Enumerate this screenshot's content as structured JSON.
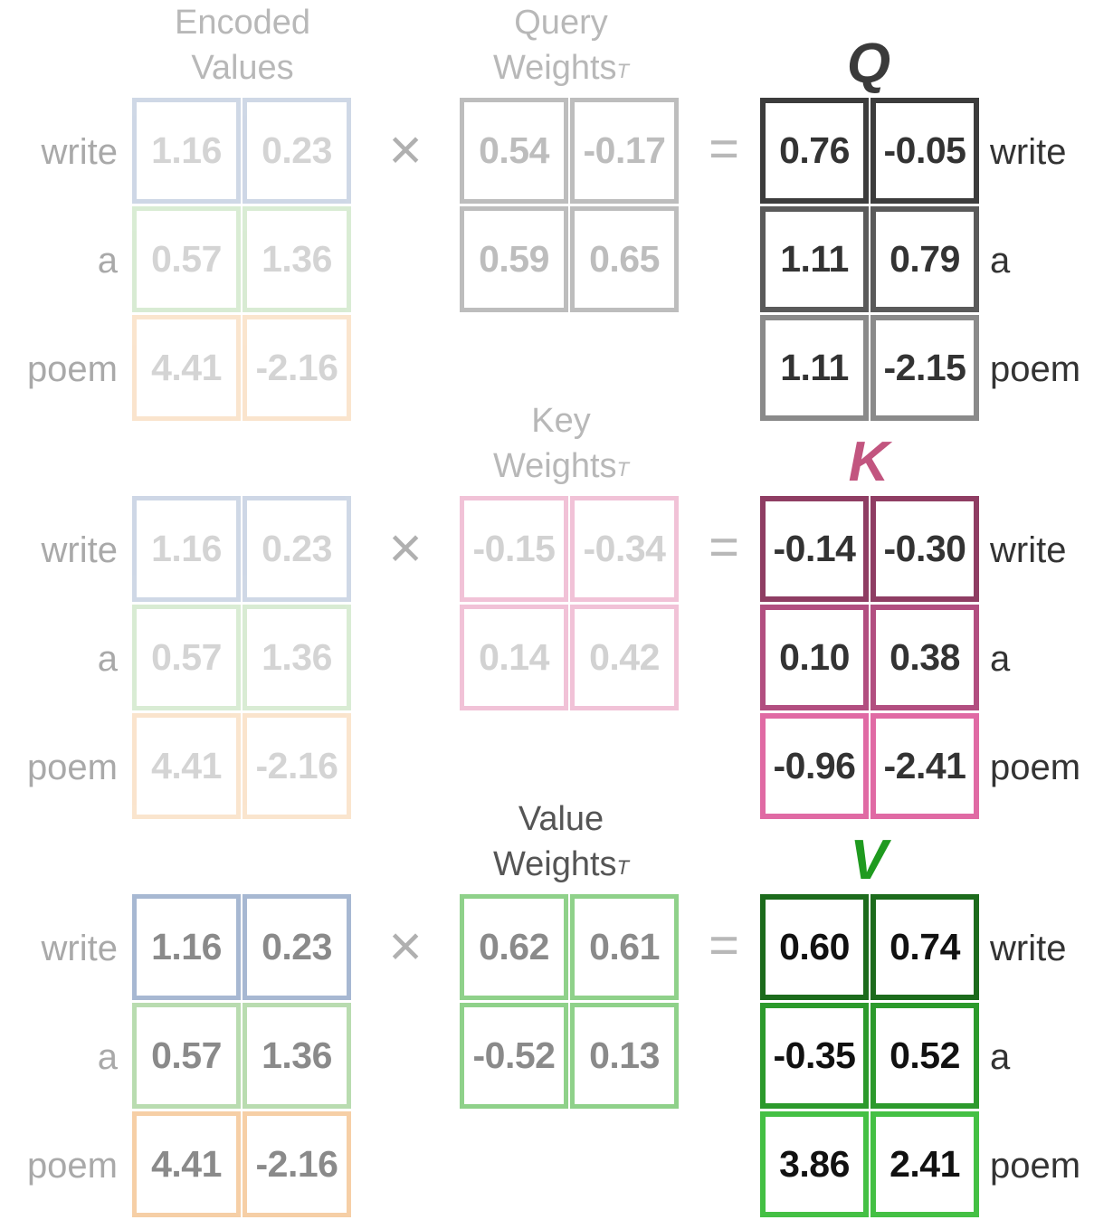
{
  "headers": {
    "encoded": [
      "Encoded",
      "Values"
    ],
    "query": [
      "Query",
      "Weights",
      "T"
    ],
    "key": [
      "Key",
      "Weights",
      "T"
    ],
    "value": [
      "Value",
      "Weights",
      "T"
    ]
  },
  "outputs": {
    "q": "Q",
    "k": "K",
    "v": "V"
  },
  "tokens": [
    "write",
    "a",
    "poem"
  ],
  "operators": {
    "times": "×",
    "equals": "="
  },
  "colors": {
    "row_write": "#a7b8d2",
    "row_a": "#b9dcb0",
    "row_poem": "#f6cfa6",
    "query_w": "#bdbdbd",
    "key_w": "#f1c2d7",
    "value_w": "#8fd18a",
    "q_out": "#4a4a4a",
    "k_out": "#a94a76",
    "v_out": "#1f8a1f",
    "k_title": "#c2557f",
    "v_title": "#1f9a1f"
  },
  "blocks": [
    {
      "encoded": [
        [
          "1.16",
          "0.23"
        ],
        [
          "0.57",
          "1.36"
        ],
        [
          "4.41",
          "-2.16"
        ]
      ],
      "weights": [
        [
          "0.54",
          "-0.17"
        ],
        [
          "0.59",
          "0.65"
        ]
      ],
      "result": [
        [
          "0.76",
          "-0.05"
        ],
        [
          "1.11",
          "0.79"
        ],
        [
          "1.11",
          "-2.15"
        ]
      ]
    },
    {
      "encoded": [
        [
          "1.16",
          "0.23"
        ],
        [
          "0.57",
          "1.36"
        ],
        [
          "4.41",
          "-2.16"
        ]
      ],
      "weights": [
        [
          "-0.15",
          "-0.34"
        ],
        [
          "0.14",
          "0.42"
        ]
      ],
      "result": [
        [
          "-0.14",
          "-0.30"
        ],
        [
          "0.10",
          "0.38"
        ],
        [
          "-0.96",
          "-2.41"
        ]
      ]
    },
    {
      "encoded": [
        [
          "1.16",
          "0.23"
        ],
        [
          "0.57",
          "1.36"
        ],
        [
          "4.41",
          "-2.16"
        ]
      ],
      "weights": [
        [
          "0.62",
          "0.61"
        ],
        [
          "-0.52",
          "0.13"
        ]
      ],
      "result": [
        [
          "0.60",
          "0.74"
        ],
        [
          "-0.35",
          "0.52"
        ],
        [
          "3.86",
          "2.41"
        ]
      ]
    }
  ]
}
